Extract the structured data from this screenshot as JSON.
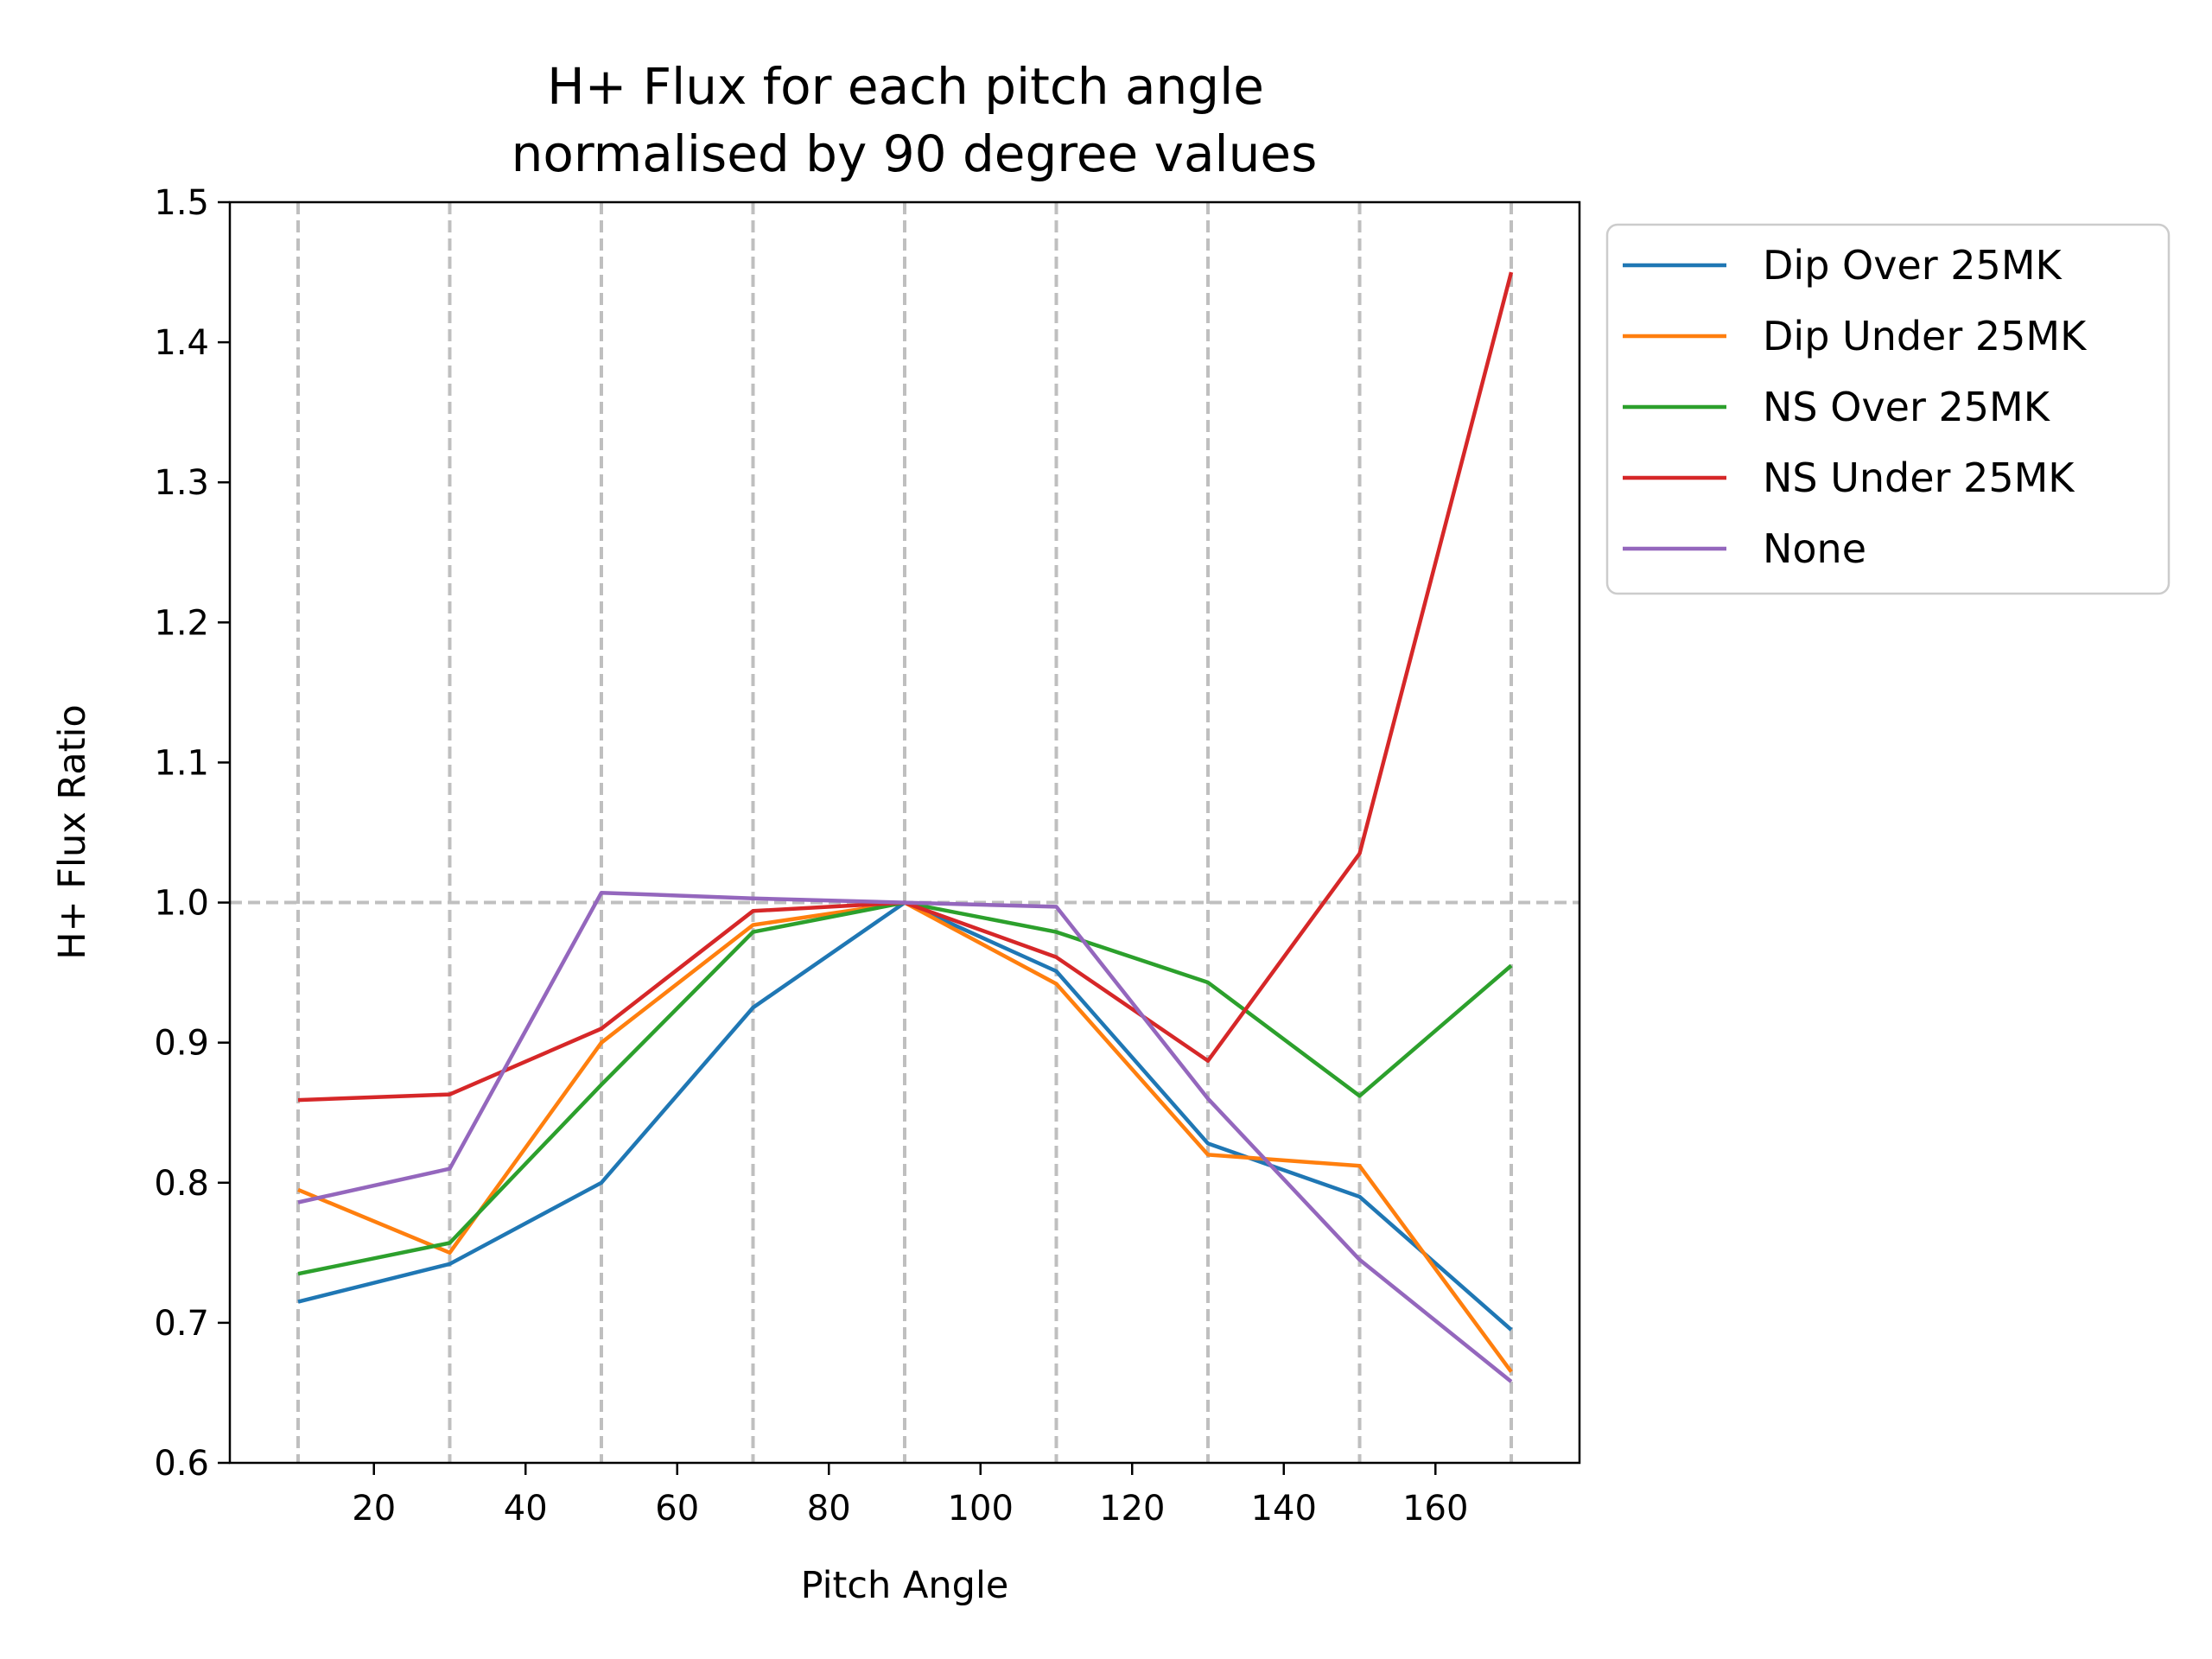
{
  "chart_data": {
    "type": "line",
    "title": [
      "H+ Flux for each pitch angle",
      "normalised by 90 degree values"
    ],
    "xlabel": "Pitch Angle",
    "ylabel": "H+ Flux Ratio",
    "xlim": [
      1,
      179
    ],
    "ylim": [
      0.6,
      1.5
    ],
    "xticks": [
      20,
      40,
      60,
      80,
      100,
      120,
      140,
      160
    ],
    "xtick_labels": [
      "20",
      "40",
      "60",
      "80",
      "100",
      "120",
      "140",
      "160"
    ],
    "yticks": [
      0.6,
      0.7,
      0.8,
      0.9,
      1.0,
      1.1,
      1.2,
      1.3,
      1.4,
      1.5
    ],
    "ytick_labels": [
      "0.6",
      "0.7",
      "0.8",
      "0.9",
      "1.0",
      "1.1",
      "1.2",
      "1.3",
      "1.4",
      "1.5"
    ],
    "vlines": [
      10,
      30,
      50,
      70,
      90,
      110,
      130,
      150,
      170
    ],
    "hline": 1.0,
    "reference_line_color": "#bfbfbf",
    "legend_position": "outside upper right",
    "x": [
      10,
      30,
      50,
      70,
      90,
      110,
      130,
      150,
      170
    ],
    "series": [
      {
        "name": "Dip Over 25MK",
        "color": "#1f77b4",
        "values": [
          0.715,
          0.742,
          0.8,
          0.925,
          1.0,
          0.951,
          0.828,
          0.79,
          0.695
        ]
      },
      {
        "name": "Dip Under 25MK",
        "color": "#ff7f0e",
        "values": [
          0.795,
          0.75,
          0.9,
          0.984,
          1.0,
          0.942,
          0.82,
          0.812,
          0.665
        ]
      },
      {
        "name": "NS Over 25MK",
        "color": "#2ca02c",
        "values": [
          0.735,
          0.757,
          0.87,
          0.979,
          1.0,
          0.979,
          0.943,
          0.862,
          0.955
        ]
      },
      {
        "name": "NS Under 25MK",
        "color": "#d62728",
        "values": [
          0.859,
          0.863,
          0.91,
          0.994,
          1.0,
          0.961,
          0.887,
          1.035,
          1.45
        ]
      },
      {
        "name": "None",
        "color": "#9467bd",
        "values": [
          0.786,
          0.81,
          1.007,
          1.003,
          1.0,
          0.997,
          0.86,
          0.745,
          0.658
        ]
      }
    ]
  }
}
